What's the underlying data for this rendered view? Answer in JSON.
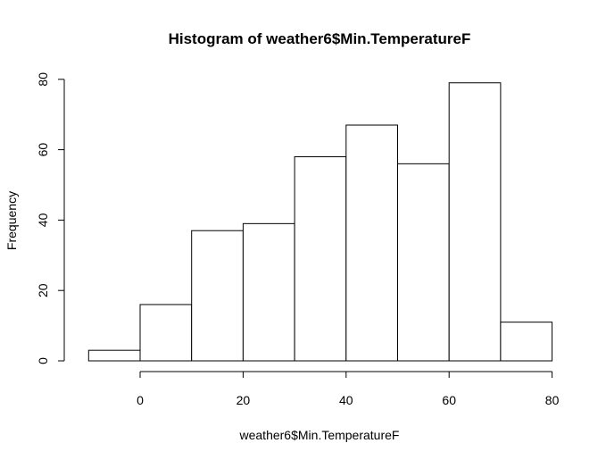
{
  "chart_data": {
    "type": "bar",
    "title": "Histogram of weather6$Min.TemperatureF",
    "xlabel": "weather6$Min.TemperatureF",
    "ylabel": "Frequency",
    "bins": [
      {
        "from": -10,
        "to": 0,
        "count": 3
      },
      {
        "from": 0,
        "to": 10,
        "count": 16
      },
      {
        "from": 10,
        "to": 20,
        "count": 37
      },
      {
        "from": 20,
        "to": 30,
        "count": 39
      },
      {
        "from": 30,
        "to": 40,
        "count": 58
      },
      {
        "from": 40,
        "to": 50,
        "count": 67
      },
      {
        "from": 50,
        "to": 60,
        "count": 56
      },
      {
        "from": 60,
        "to": 70,
        "count": 79
      },
      {
        "from": 70,
        "to": 80,
        "count": 11
      }
    ],
    "xlim": [
      -10,
      80
    ],
    "ylim": [
      0,
      80
    ],
    "x_ticks": [
      0,
      20,
      40,
      60,
      80
    ],
    "y_ticks": [
      0,
      20,
      40,
      60,
      80
    ],
    "grid": false
  }
}
